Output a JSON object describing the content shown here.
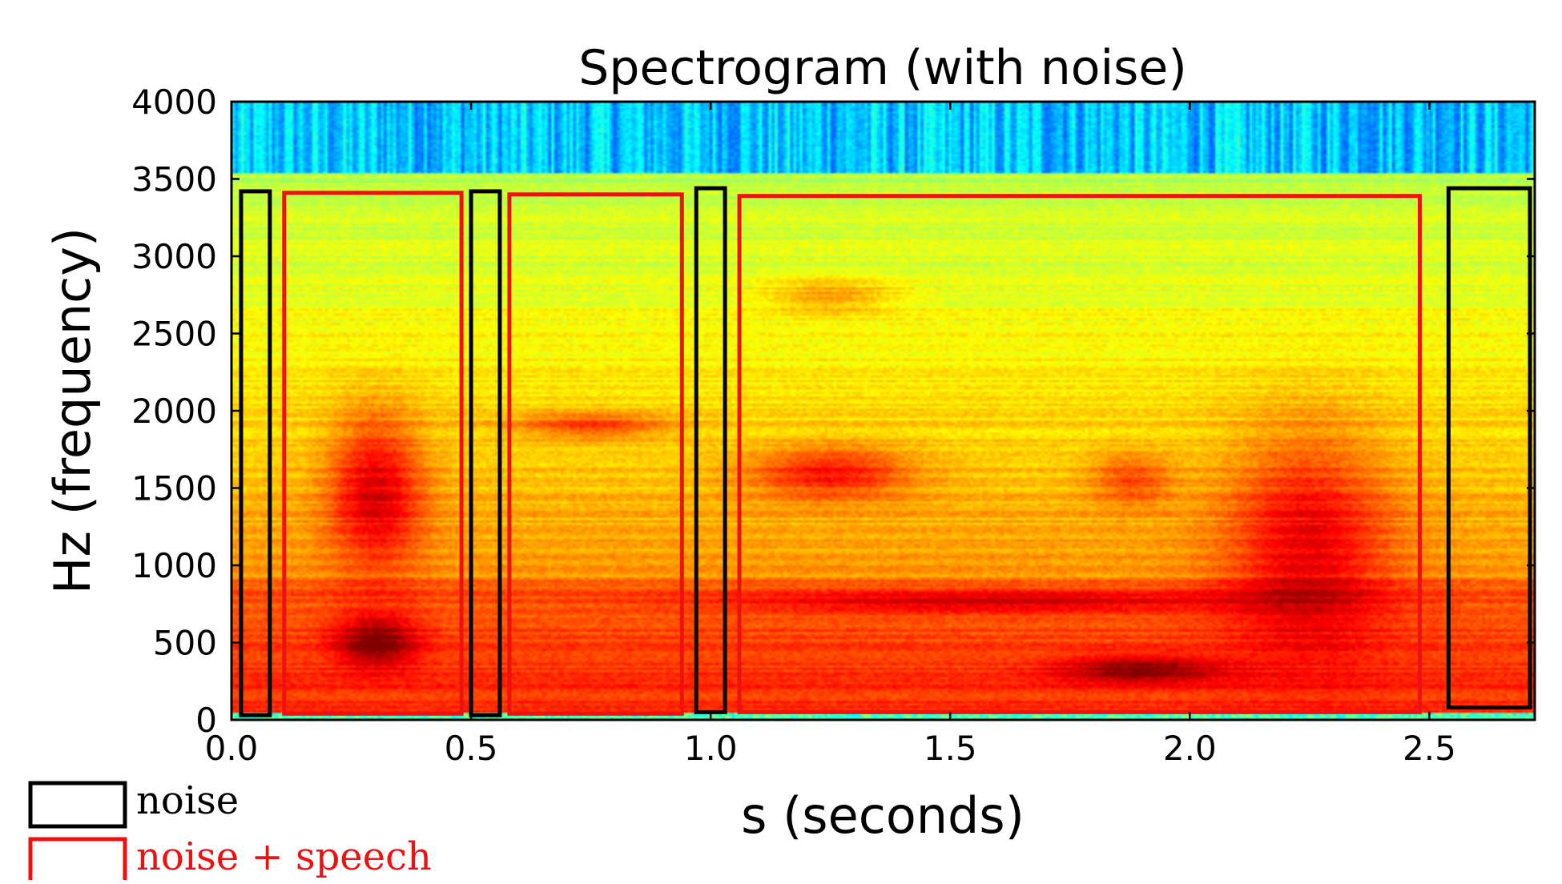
{
  "chart_data": {
    "type": "heatmap",
    "title": "Spectrogram (with noise)",
    "xlabel": "s (seconds)",
    "ylabel": "Hz (frequency)",
    "xlim": [
      0.0,
      2.72
    ],
    "ylim": [
      0,
      4000
    ],
    "x_ticks": [
      "0.0",
      "0.5",
      "1.0",
      "1.5",
      "2.0",
      "2.5"
    ],
    "x_tick_values": [
      0.0,
      0.5,
      1.0,
      1.5,
      2.0,
      2.5
    ],
    "y_ticks": [
      "0",
      "500",
      "1000",
      "1500",
      "2000",
      "2500",
      "3000",
      "3500",
      "4000"
    ],
    "y_tick_values": [
      0,
      500,
      1000,
      1500,
      2000,
      2500,
      3000,
      3500,
      4000
    ],
    "grid": false,
    "legend_position": "bottom-left",
    "colormap": "jet",
    "regions": [
      {
        "label": "noise",
        "t_start": 0.02,
        "t_end": 0.08,
        "f_low": 30,
        "f_high": 3420
      },
      {
        "label": "noise + speech",
        "t_start": 0.11,
        "t_end": 0.48,
        "f_low": 40,
        "f_high": 3410
      },
      {
        "label": "noise",
        "t_start": 0.5,
        "t_end": 0.56,
        "f_low": 30,
        "f_high": 3420
      },
      {
        "label": "noise + speech",
        "t_start": 0.58,
        "t_end": 0.94,
        "f_low": 40,
        "f_high": 3400
      },
      {
        "label": "noise",
        "t_start": 0.97,
        "t_end": 1.03,
        "f_low": 50,
        "f_high": 3440
      },
      {
        "label": "noise + speech",
        "t_start": 1.06,
        "t_end": 2.48,
        "f_low": 50,
        "f_high": 3390
      },
      {
        "label": "noise",
        "t_start": 2.54,
        "t_end": 2.71,
        "f_low": 80,
        "f_high": 3440
      }
    ],
    "legend": [
      {
        "label": "noise",
        "color": "#000000"
      },
      {
        "label": "noise + speech",
        "color": "#ee1111"
      }
    ]
  }
}
